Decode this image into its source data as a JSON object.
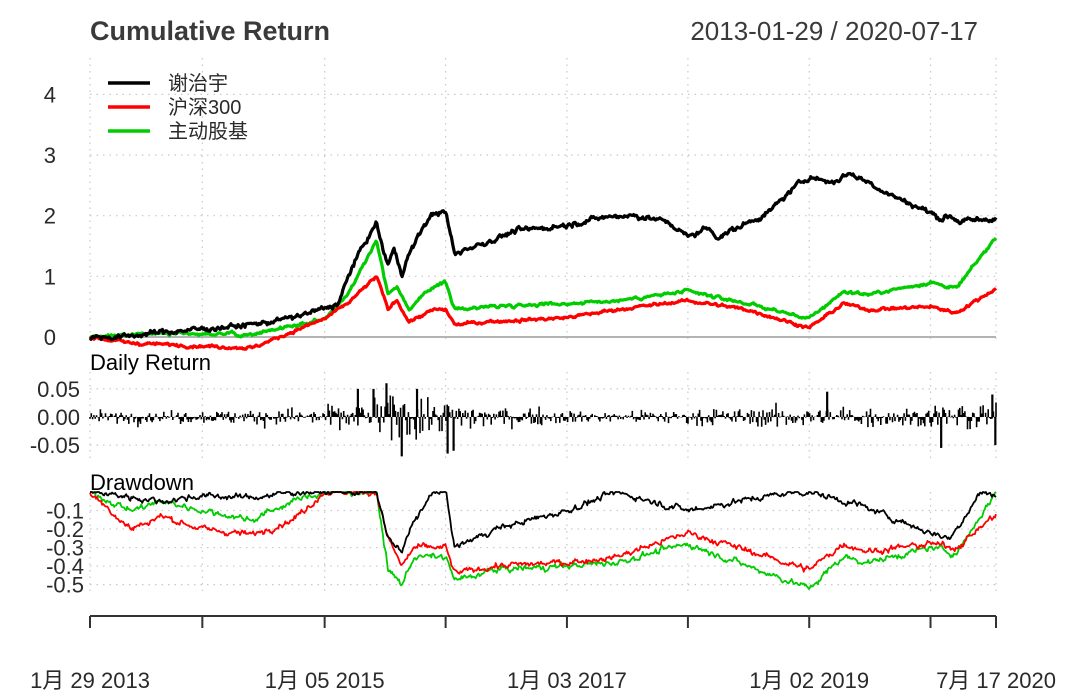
{
  "chart_data": {
    "type": "line",
    "title": "Cumulative Return",
    "date_range": "2013-01-29 / 2020-07-17",
    "colors": {
      "谢治宇": "#000000",
      "沪深300": "#ff0000",
      "主动股基": "#00cc00",
      "zero_line": "#b3b3b3",
      "grid": "#c8c8c8"
    },
    "legend": {
      "position": "top-left",
      "entries": [
        "谢治宇",
        "沪深300",
        "主动股基"
      ]
    },
    "x_axis": {
      "start": "2013-01-29",
      "end": "2020-07-17",
      "tick_labels": [
        {
          "date": "2013-01-29",
          "label": "1月 29 2013"
        },
        {
          "date": "2015-01-05",
          "label": "1月 05 2015"
        },
        {
          "date": "2017-01-03",
          "label": "1月 03 2017"
        },
        {
          "date": "2019-01-02",
          "label": "1月 02 2019"
        },
        {
          "date": "2020-07-17",
          "label": "7月 17 2020"
        }
      ],
      "minor_ticks": [
        "2014-01-02",
        "2016-01-04",
        "2018-01-02",
        "2020-01-02"
      ]
    },
    "panels": {
      "cumulative": {
        "ylim": [
          -0.05,
          4.6
        ],
        "yticks": [
          0,
          1,
          2,
          3,
          4
        ],
        "ytick_labels": [
          "0",
          "1",
          "2",
          "3",
          "4"
        ],
        "series": [
          {
            "name": "谢治宇",
            "points": [
              [
                "2013-01-29",
                0.0
              ],
              [
                "2013-05-01",
                0.0
              ],
              [
                "2013-09-01",
                0.08
              ],
              [
                "2014-01-02",
                0.13
              ],
              [
                "2014-04-01",
                0.17
              ],
              [
                "2014-07-01",
                0.23
              ],
              [
                "2014-10-01",
                0.32
              ],
              [
                "2015-01-05",
                0.47
              ],
              [
                "2015-02-15",
                0.55
              ],
              [
                "2015-04-01",
                1.2
              ],
              [
                "2015-05-01",
                1.5
              ],
              [
                "2015-06-10",
                1.88
              ],
              [
                "2015-07-01",
                1.4
              ],
              [
                "2015-07-15",
                1.2
              ],
              [
                "2015-08-01",
                1.45
              ],
              [
                "2015-08-25",
                1.05
              ],
              [
                "2015-09-15",
                1.35
              ],
              [
                "2015-11-01",
                1.85
              ],
              [
                "2015-12-01",
                2.05
              ],
              [
                "2016-01-04",
                2.05
              ],
              [
                "2016-01-20",
                1.65
              ],
              [
                "2016-02-01",
                1.35
              ],
              [
                "2016-03-01",
                1.45
              ],
              [
                "2016-05-01",
                1.55
              ],
              [
                "2016-08-01",
                1.75
              ],
              [
                "2016-11-01",
                1.8
              ],
              [
                "2017-01-03",
                1.85
              ],
              [
                "2017-04-01",
                1.95
              ],
              [
                "2017-06-01",
                2.0
              ],
              [
                "2017-08-01",
                2.0
              ],
              [
                "2017-11-01",
                1.9
              ],
              [
                "2018-01-02",
                1.65
              ],
              [
                "2018-03-01",
                1.8
              ],
              [
                "2018-04-01",
                1.65
              ],
              [
                "2018-06-01",
                1.8
              ],
              [
                "2018-09-01",
                2.05
              ],
              [
                "2018-11-15",
                2.45
              ],
              [
                "2019-01-02",
                2.65
              ],
              [
                "2019-02-01",
                2.6
              ],
              [
                "2019-03-15",
                2.55
              ],
              [
                "2019-05-01",
                2.7
              ],
              [
                "2019-07-01",
                2.55
              ],
              [
                "2019-09-01",
                2.35
              ],
              [
                "2019-11-01",
                2.2
              ],
              [
                "2020-01-02",
                2.05
              ],
              [
                "2020-02-01",
                1.95
              ],
              [
                "2020-03-01",
                2.0
              ],
              [
                "2020-04-01",
                1.9
              ],
              [
                "2020-07-01",
                1.95
              ],
              [
                "2020-07-17",
                1.95
              ]
            ]
          },
          {
            "name": "沪深300",
            "points": [
              [
                "2013-01-29",
                0.0
              ],
              [
                "2013-06-01",
                -0.1
              ],
              [
                "2014-01-02",
                -0.15
              ],
              [
                "2014-06-01",
                -0.18
              ],
              [
                "2015-01-05",
                0.3
              ],
              [
                "2015-03-15",
                0.55
              ],
              [
                "2015-06-10",
                1.0
              ],
              [
                "2015-07-15",
                0.45
              ],
              [
                "2015-08-10",
                0.62
              ],
              [
                "2015-09-15",
                0.25
              ],
              [
                "2015-12-01",
                0.45
              ],
              [
                "2016-01-04",
                0.45
              ],
              [
                "2016-02-01",
                0.2
              ],
              [
                "2016-05-01",
                0.25
              ],
              [
                "2016-11-01",
                0.3
              ],
              [
                "2017-01-03",
                0.32
              ],
              [
                "2017-06-01",
                0.45
              ],
              [
                "2018-01-02",
                0.6
              ],
              [
                "2018-07-01",
                0.45
              ],
              [
                "2019-01-02",
                0.15
              ],
              [
                "2019-04-15",
                0.55
              ],
              [
                "2019-07-01",
                0.45
              ],
              [
                "2020-01-02",
                0.5
              ],
              [
                "2020-03-20",
                0.4
              ],
              [
                "2020-07-17",
                0.8
              ]
            ]
          },
          {
            "name": "主动股基",
            "points": [
              [
                "2013-01-29",
                0.0
              ],
              [
                "2013-06-01",
                0.05
              ],
              [
                "2014-01-02",
                0.05
              ],
              [
                "2014-06-01",
                0.05
              ],
              [
                "2015-01-05",
                0.3
              ],
              [
                "2015-03-15",
                0.7
              ],
              [
                "2015-06-10",
                1.6
              ],
              [
                "2015-07-15",
                0.7
              ],
              [
                "2015-08-10",
                0.85
              ],
              [
                "2015-09-15",
                0.45
              ],
              [
                "2015-12-01",
                0.85
              ],
              [
                "2016-01-04",
                0.9
              ],
              [
                "2016-02-01",
                0.45
              ],
              [
                "2016-05-01",
                0.5
              ],
              [
                "2016-11-01",
                0.55
              ],
              [
                "2017-01-03",
                0.55
              ],
              [
                "2017-06-01",
                0.6
              ],
              [
                "2018-01-02",
                0.75
              ],
              [
                "2018-07-01",
                0.55
              ],
              [
                "2019-01-02",
                0.3
              ],
              [
                "2019-04-15",
                0.75
              ],
              [
                "2019-07-01",
                0.7
              ],
              [
                "2020-01-02",
                0.9
              ],
              [
                "2020-03-20",
                0.8
              ],
              [
                "2020-07-17",
                1.65
              ]
            ]
          }
        ]
      },
      "daily_return": {
        "title": "Daily Return",
        "ylim": [
          -0.08,
          0.08
        ],
        "yticks": [
          0.05,
          0.0,
          -0.05
        ],
        "ytick_labels": [
          "0.05",
          "0.00",
          "-0.05"
        ],
        "volatility_profile": [
          [
            "2013-01-29",
            0.012
          ],
          [
            "2014-01-02",
            0.012
          ],
          [
            "2015-01-05",
            0.02
          ],
          [
            "2015-05-01",
            0.03
          ],
          [
            "2015-07-01",
            0.045
          ],
          [
            "2015-09-01",
            0.04
          ],
          [
            "2016-01-04",
            0.035
          ],
          [
            "2016-04-01",
            0.022
          ],
          [
            "2017-01-03",
            0.012
          ],
          [
            "2018-01-02",
            0.015
          ],
          [
            "2019-01-02",
            0.02
          ],
          [
            "2019-06-01",
            0.018
          ],
          [
            "2020-01-02",
            0.02
          ],
          [
            "2020-03-01",
            0.03
          ],
          [
            "2020-07-17",
            0.025
          ]
        ],
        "spikes": [
          [
            "2015-06-01",
            0.05
          ],
          [
            "2015-07-10",
            0.06
          ],
          [
            "2015-08-25",
            -0.07
          ],
          [
            "2016-01-10",
            -0.065
          ],
          [
            "2016-01-28",
            -0.06
          ],
          [
            "2015-04-15",
            0.05
          ],
          [
            "2015-10-10",
            0.05
          ],
          [
            "2019-02-25",
            0.045
          ],
          [
            "2020-02-03",
            -0.055
          ],
          [
            "2020-07-06",
            0.04
          ],
          [
            "2020-07-15",
            -0.05
          ]
        ]
      },
      "drawdown": {
        "title": "Drawdown",
        "ylim": [
          -0.54,
          0.0
        ],
        "yticks": [
          -0.1,
          -0.2,
          -0.3,
          -0.4,
          -0.5
        ],
        "ytick_labels": [
          "-0.1",
          "-0.2",
          "-0.3",
          "-0.4",
          "-0.5"
        ],
        "series": [
          {
            "name": "谢治宇",
            "points": [
              [
                "2013-01-29",
                0.0
              ],
              [
                "2013-05-01",
                -0.02
              ],
              [
                "2013-09-01",
                -0.05
              ],
              [
                "2014-01-02",
                -0.02
              ],
              [
                "2014-06-01",
                -0.03
              ],
              [
                "2014-10-01",
                0.0
              ],
              [
                "2015-06-10",
                0.0
              ],
              [
                "2015-07-15",
                -0.25
              ],
              [
                "2015-08-25",
                -0.33
              ],
              [
                "2015-10-01",
                -0.15
              ],
              [
                "2015-12-01",
                0.0
              ],
              [
                "2016-01-04",
                0.0
              ],
              [
                "2016-02-01",
                -0.3
              ],
              [
                "2016-06-01",
                -0.2
              ],
              [
                "2017-01-03",
                -0.1
              ],
              [
                "2017-06-01",
                0.0
              ],
              [
                "2018-01-02",
                -0.1
              ],
              [
                "2018-06-01",
                -0.05
              ],
              [
                "2018-11-15",
                0.0
              ],
              [
                "2019-01-02",
                0.0
              ],
              [
                "2019-06-01",
                -0.07
              ],
              [
                "2020-01-02",
                -0.22
              ],
              [
                "2020-03-01",
                -0.25
              ],
              [
                "2020-06-01",
                0.0
              ],
              [
                "2020-07-17",
                -0.02
              ]
            ]
          },
          {
            "name": "沪深300",
            "points": [
              [
                "2013-01-29",
                0.0
              ],
              [
                "2013-06-01",
                -0.2
              ],
              [
                "2013-09-01",
                -0.13
              ],
              [
                "2014-01-02",
                -0.2
              ],
              [
                "2014-06-01",
                -0.23
              ],
              [
                "2014-10-01",
                -0.15
              ],
              [
                "2015-01-05",
                0.0
              ],
              [
                "2015-06-10",
                0.0
              ],
              [
                "2015-07-15",
                -0.25
              ],
              [
                "2015-08-25",
                -0.4
              ],
              [
                "2015-10-01",
                -0.3
              ],
              [
                "2016-01-04",
                -0.3
              ],
              [
                "2016-02-01",
                -0.44
              ],
              [
                "2016-06-01",
                -0.4
              ],
              [
                "2017-01-03",
                -0.38
              ],
              [
                "2017-06-01",
                -0.35
              ],
              [
                "2018-01-02",
                -0.22
              ],
              [
                "2018-06-01",
                -0.3
              ],
              [
                "2019-01-02",
                -0.42
              ],
              [
                "2019-04-15",
                -0.28
              ],
              [
                "2019-07-01",
                -0.32
              ],
              [
                "2020-01-02",
                -0.28
              ],
              [
                "2020-03-20",
                -0.3
              ],
              [
                "2020-07-17",
                -0.12
              ]
            ]
          },
          {
            "name": "主动股基",
            "points": [
              [
                "2013-01-29",
                0.0
              ],
              [
                "2013-06-01",
                -0.1
              ],
              [
                "2013-09-01",
                -0.05
              ],
              [
                "2014-01-02",
                -0.1
              ],
              [
                "2014-06-01",
                -0.15
              ],
              [
                "2014-10-01",
                -0.05
              ],
              [
                "2015-01-05",
                0.0
              ],
              [
                "2015-06-10",
                0.0
              ],
              [
                "2015-07-15",
                -0.42
              ],
              [
                "2015-08-25",
                -0.5
              ],
              [
                "2015-10-01",
                -0.35
              ],
              [
                "2016-01-04",
                -0.35
              ],
              [
                "2016-02-01",
                -0.48
              ],
              [
                "2016-06-01",
                -0.42
              ],
              [
                "2017-01-03",
                -0.4
              ],
              [
                "2017-06-01",
                -0.38
              ],
              [
                "2018-01-02",
                -0.28
              ],
              [
                "2018-06-01",
                -0.38
              ],
              [
                "2019-01-02",
                -0.52
              ],
              [
                "2019-04-15",
                -0.35
              ],
              [
                "2019-07-01",
                -0.38
              ],
              [
                "2020-01-02",
                -0.3
              ],
              [
                "2020-03-20",
                -0.33
              ],
              [
                "2020-07-17",
                0.0
              ]
            ]
          }
        ]
      }
    }
  }
}
